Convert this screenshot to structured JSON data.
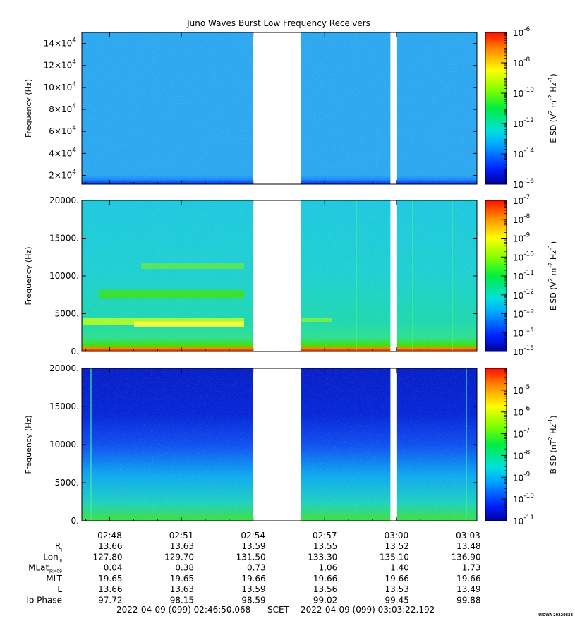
{
  "chart_data": {
    "type": "heatmap",
    "title": "Juno Waves Burst Low Frequency Receivers",
    "x_ticks": [
      "02:48",
      "02:51",
      "02:54",
      "02:57",
      "03:00",
      "03:03"
    ],
    "data_gaps": [
      {
        "start": "02:54",
        "end": "02:56"
      },
      {
        "start": "02:59:45",
        "end": "03:00"
      }
    ],
    "panels": [
      {
        "id": "esd-high",
        "ylabel": "Frequency (Hz)",
        "y_ticks": [
          {
            "mant": "2×10",
            "exp": "4"
          },
          {
            "mant": "4×10",
            "exp": "4"
          },
          {
            "mant": "6×10",
            "exp": "4"
          },
          {
            "mant": "8×10",
            "exp": "4"
          },
          {
            "mant": "10×10",
            "exp": "4"
          },
          {
            "mant": "12×10",
            "exp": "4"
          },
          {
            "mant": "14×10",
            "exp": "4"
          }
        ],
        "ylim": [
          12000,
          150000
        ],
        "colorbar": {
          "label_main": "E SD (V",
          "label_sup1": "2",
          "label_mid": " m",
          "label_sup2": "-2",
          "label_mid2": " Hz",
          "label_sup3": "-1",
          "label_end": ")",
          "scale": "log",
          "range_exp": [
            -16,
            -6
          ],
          "ticks": [
            {
              "exp": "-6"
            },
            {
              "exp": "-8"
            },
            {
              "exp": "-10"
            },
            {
              "exp": "-12"
            },
            {
              "exp": "-14"
            },
            {
              "exp": "-16"
            }
          ]
        }
      },
      {
        "id": "esd-low",
        "ylabel": "Frequency (Hz)",
        "y_ticks": [
          "20000.",
          "15000.",
          "10000.",
          "5000.",
          "0."
        ],
        "ylim": [
          0,
          20000
        ],
        "colorbar": {
          "label_main": "E SD (V",
          "label_sup1": "2",
          "label_mid": " m",
          "label_sup2": "-2",
          "label_mid2": " Hz",
          "label_sup3": "-1",
          "label_end": ")",
          "scale": "log",
          "range_exp": [
            -15,
            -7
          ],
          "ticks": [
            {
              "exp": "-7"
            },
            {
              "exp": "-8"
            },
            {
              "exp": "-9"
            },
            {
              "exp": "-10"
            },
            {
              "exp": "-11"
            },
            {
              "exp": "-12"
            },
            {
              "exp": "-13"
            },
            {
              "exp": "-14"
            },
            {
              "exp": "-15"
            }
          ]
        }
      },
      {
        "id": "bsd",
        "ylabel": "Frequency (Hz)",
        "y_ticks": [
          "20000.",
          "15000.",
          "10000.",
          "5000.",
          "0."
        ],
        "ylim": [
          0,
          20000
        ],
        "colorbar": {
          "label_main": "B SD (nT",
          "label_sup1": "2",
          "label_mid": " Hz",
          "label_sup2": "-1",
          "label_mid2": "",
          "label_sup3": "",
          "label_end": ")",
          "scale": "log",
          "range_exp": [
            -11,
            -4
          ],
          "ticks": [
            {
              "exp": "-5"
            },
            {
              "exp": "-6"
            },
            {
              "exp": "-7"
            },
            {
              "exp": "-8"
            },
            {
              "exp": "-9"
            },
            {
              "exp": "-10"
            },
            {
              "exp": "-11"
            }
          ]
        }
      }
    ],
    "ephemeris": [
      {
        "label": "R",
        "sub": "J",
        "values": [
          "13.66",
          "13.63",
          "13.59",
          "13.55",
          "13.52",
          "13.48"
        ]
      },
      {
        "label": "Lon",
        "sub": "III",
        "values": [
          "127.80",
          "129.70",
          "131.50",
          "133.30",
          "135.10",
          "136.90"
        ]
      },
      {
        "label": "MLat",
        "sub": "JRM09",
        "values": [
          "0.04",
          "0.38",
          "0.73",
          "1.06",
          "1.40",
          "1.73"
        ]
      },
      {
        "label": "MLT",
        "sub": "",
        "values": [
          "19.65",
          "19.65",
          "19.66",
          "19.66",
          "19.66",
          "19.66"
        ]
      },
      {
        "label": "L",
        "sub": "",
        "values": [
          "13.66",
          "13.63",
          "13.59",
          "13.56",
          "13.53",
          "13.49"
        ]
      },
      {
        "label": "Io Phase",
        "sub": "",
        "values": [
          "97.72",
          "98.15",
          "98.59",
          "99.02",
          "99.45",
          "99.88"
        ]
      }
    ],
    "footer": {
      "start": "2022-04-09 (099) 02:46:50.068",
      "frame": "SCET",
      "end": "2022-04-09 (099) 03:03:22.192"
    },
    "credit": "UIOWA 20220828"
  }
}
